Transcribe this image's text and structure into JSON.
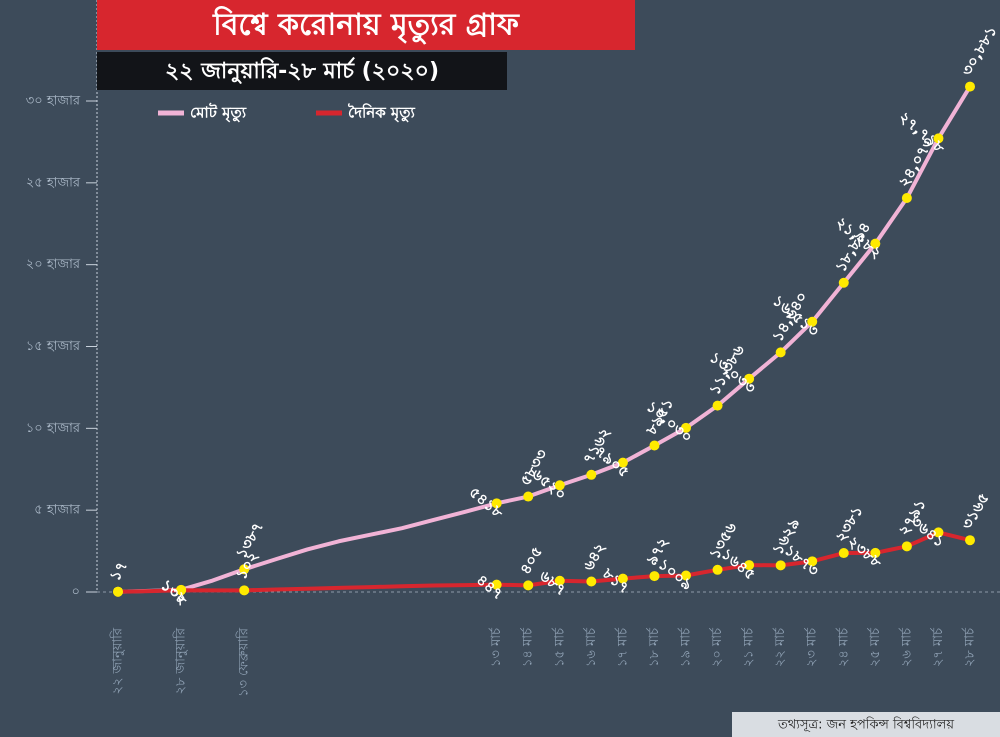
{
  "chart_data": {
    "type": "line",
    "title": "বিশ্বে করোনায় মৃত্যুর গ্রাফ",
    "subtitle": "২২ জানুয়ারি-২৮ মার্চ (২০২০)",
    "source": "তথ্যসূত্র: জন হপকিন্স বিশ্ববিদ্যালয়",
    "categories": [
      "২২ জানুয়ারি",
      null,
      "২৮ জানুয়ারি",
      null,
      "১৩ ফেব্রুয়ারি",
      null,
      null,
      null,
      null,
      null,
      null,
      null,
      "১৩ মার্চ",
      "১৪ মার্চ",
      "১৫ মার্চ",
      "১৬ মার্চ",
      "১৭ মার্চ",
      "১৮ মার্চ",
      "১৯ মার্চ",
      "২০ মার্চ",
      "২১ মার্চ",
      "২২ মার্চ",
      "২৩ মার্চ",
      "২৪ মার্চ",
      "২৫ মার্চ",
      "২৬ মার্চ",
      "২৭ মার্চ",
      "২৮ মার্চ"
    ],
    "series": [
      {
        "name": "মোট মৃত্যু",
        "color": "#f1b3d6",
        "values": [
          17,
          70,
          132,
          700,
          1387,
          2000,
          2600,
          3100,
          3500,
          3900,
          4400,
          4900,
          5418,
          5833,
          6520,
          7162,
          7905,
          8951,
          10030,
          11386,
          13033,
          14640,
          16513,
          18894,
          21282,
          24073,
          27718,
          30881
        ],
        "value_labels": [
          "১৭",
          null,
          "১৩২",
          null,
          "১৩৮৭",
          null,
          null,
          null,
          null,
          null,
          null,
          null,
          "৫৪১৮",
          "৫৮৩৩",
          "৬৫২০",
          "৭১৬২",
          "৭৯০৫",
          "৮৯৫১",
          "১০,০৩০",
          "১১,৩৮৬",
          "১৩,০৩৩",
          "১৪,৬৪০",
          "১৬,৫১৩",
          "১৮,৮৯৪",
          "২১,২৮২",
          "২৪,০৭৩",
          "২৭,৭১৮",
          "৩০,৮৮১"
        ]
      },
      {
        "name": "দৈনিক মৃত্যু",
        "color": "#d7262e",
        "values": [
          17,
          50,
          108,
          100,
          102,
          150,
          200,
          250,
          300,
          350,
          400,
          420,
          447,
          405,
          687,
          642,
          817,
          972,
          1009,
          1356,
          1645,
          1629,
          1873,
          2381,
          2388,
          2791,
          3641,
          3165
        ],
        "value_labels": [
          null,
          null,
          "১০৮",
          null,
          "১০২",
          null,
          null,
          null,
          null,
          null,
          null,
          null,
          "৪৪৭",
          "৪০৫",
          "৬৮৭",
          "৬৪২",
          "৮১৭",
          "৯৭২",
          "১০০৯",
          "১৩৫৬",
          "১৬৪৫",
          "১৬২৯",
          "১৮৭৩",
          "২৩৮১",
          "২৩৮৮",
          "২৭৯১",
          "৩৬৪১",
          "৩১৬৫"
        ]
      }
    ],
    "point_color": "#ffea00",
    "ylim": [
      0,
      30000
    ],
    "yticks": [
      {
        "value": 0,
        "label": "০"
      },
      {
        "value": 5000,
        "label": "৫ হাজার"
      },
      {
        "value": 10000,
        "label": "১০ হাজার"
      },
      {
        "value": 15000,
        "label": "১৫ হাজার"
      },
      {
        "value": 20000,
        "label": "২০ হাজার"
      },
      {
        "value": 25000,
        "label": "২৫ হাজার"
      },
      {
        "value": 30000,
        "label": "৩০ হাজার"
      }
    ]
  }
}
